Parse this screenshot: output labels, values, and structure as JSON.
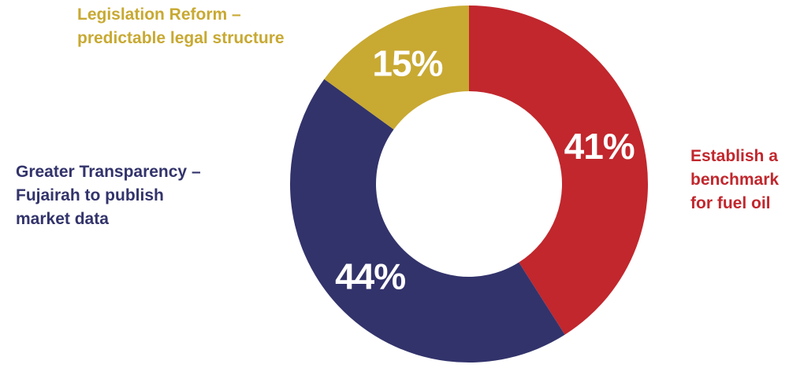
{
  "chart_data": {
    "type": "pie",
    "donut": true,
    "slices": [
      {
        "value": 41,
        "display": "41%",
        "color": "#c1272d",
        "label_lines": [
          "Establish a",
          "benchmark",
          "for fuel oil"
        ]
      },
      {
        "value": 44,
        "display": "44%",
        "color": "#32336b",
        "label_lines": [
          "Greater Transparency –",
          "Fujairah to publish",
          "market data"
        ]
      },
      {
        "value": 15,
        "display": "15%",
        "color": "#c8a932",
        "label_lines": [
          "Legislation Reform –",
          "predictable legal structure"
        ]
      }
    ]
  }
}
